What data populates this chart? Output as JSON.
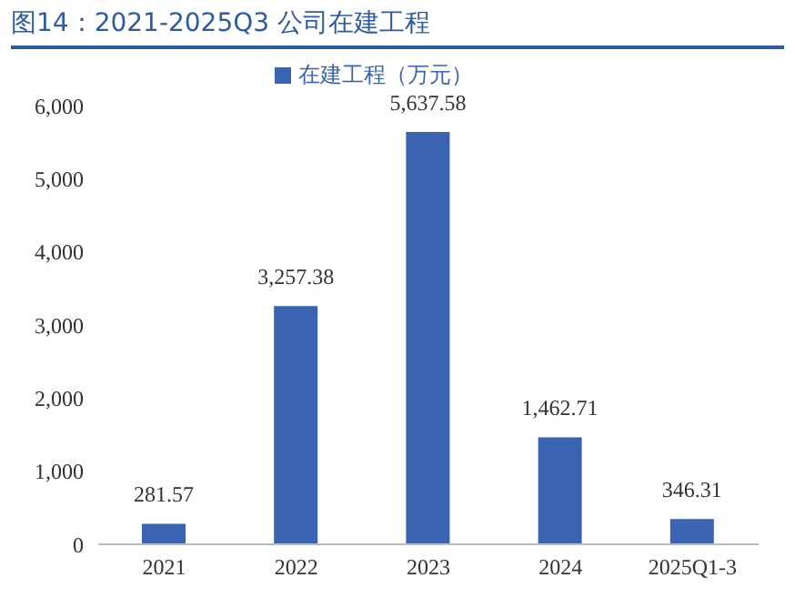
{
  "chart_data": {
    "type": "bar",
    "title": "图14：2021-2025Q3 公司在建工程",
    "categories": [
      "2021",
      "2022",
      "2023",
      "2024",
      "2025Q1-3"
    ],
    "series": [
      {
        "name": "在建工程（万元）",
        "color": "#3a63b2",
        "values": [
          281.57,
          3257.38,
          5637.58,
          1462.71,
          346.31
        ],
        "value_labels": [
          "281.57",
          "3,257.38",
          "5,637.58",
          "1,462.71",
          "346.31"
        ]
      }
    ],
    "ylim": [
      0,
      6000
    ],
    "yticks": [
      {
        "value": 0,
        "label": "0"
      },
      {
        "value": 1000,
        "label": "1,000"
      },
      {
        "value": 2000,
        "label": "2,000"
      },
      {
        "value": 3000,
        "label": "3,000"
      },
      {
        "value": 4000,
        "label": "4,000"
      },
      {
        "value": 5000,
        "label": "5,000"
      },
      {
        "value": 6000,
        "label": "6,000"
      }
    ],
    "legend": "top",
    "grid": false
  }
}
